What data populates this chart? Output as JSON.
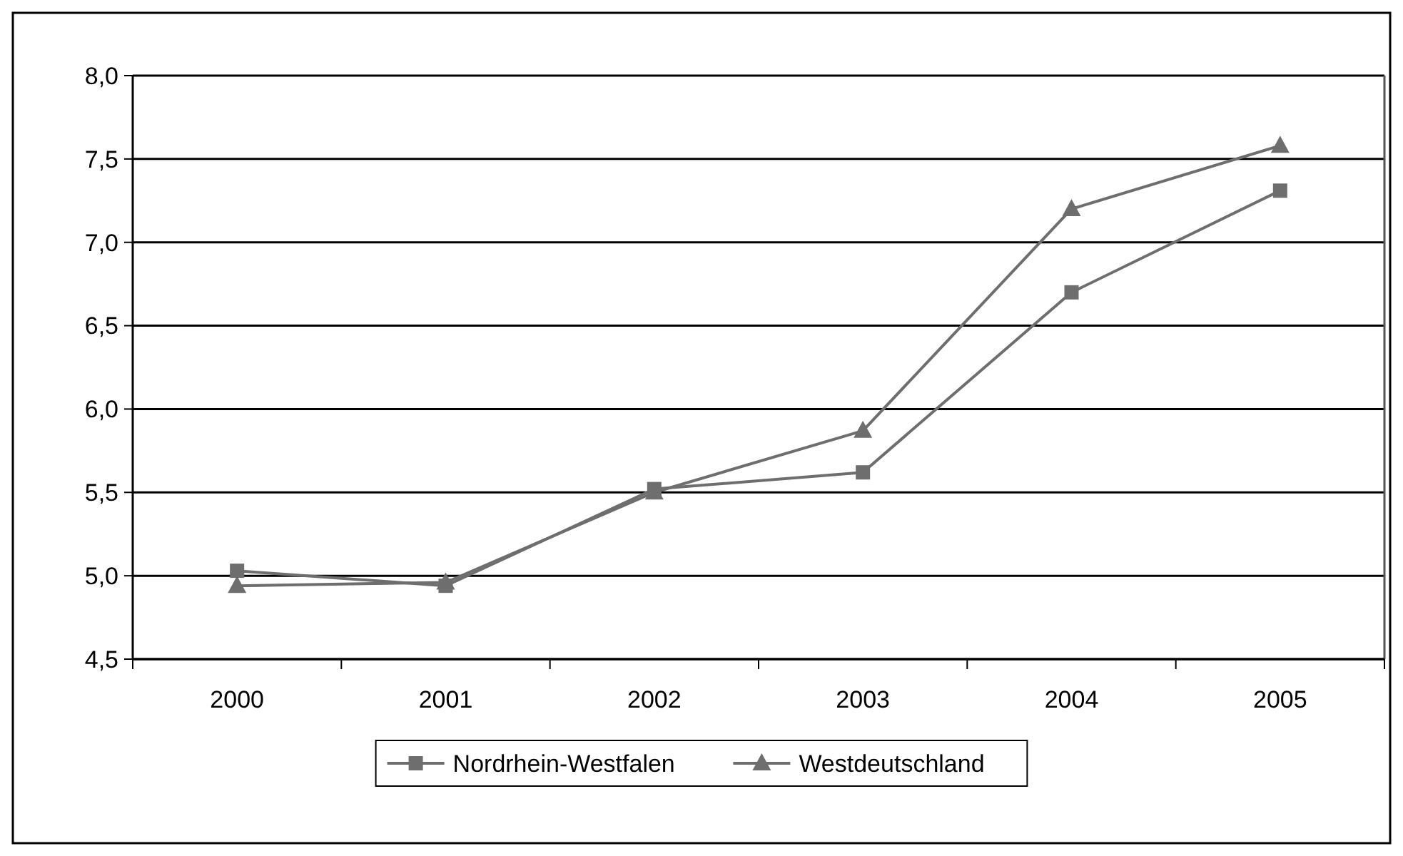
{
  "chart_data": {
    "type": "line",
    "categories": [
      "2000",
      "2001",
      "2002",
      "2003",
      "2004",
      "2005"
    ],
    "series": [
      {
        "name": "Nordrhein-Westfalen",
        "color": "#6e6e6e",
        "marker": "square",
        "values": [
          5.03,
          4.94,
          5.52,
          5.62,
          6.7,
          7.31
        ]
      },
      {
        "name": "Westdeutschland",
        "color": "#6e6e6e",
        "marker": "triangle",
        "values": [
          4.94,
          4.96,
          5.5,
          5.87,
          7.2,
          7.58
        ]
      }
    ],
    "ylim": [
      4.5,
      8.0
    ],
    "yticks": [
      {
        "value": 4.5,
        "label": "4,5"
      },
      {
        "value": 5,
        "label": "5,0"
      },
      {
        "value": 5.5,
        "label": "5,5"
      },
      {
        "value": 6,
        "label": "6,0"
      },
      {
        "value": 6.5,
        "label": "6,5"
      },
      {
        "value": 7,
        "label": "7,0"
      },
      {
        "value": 7.5,
        "label": "7,5"
      },
      {
        "value": 8,
        "label": "8,0"
      }
    ],
    "grid": "y",
    "legend": "bottom",
    "line_style": "solid"
  }
}
